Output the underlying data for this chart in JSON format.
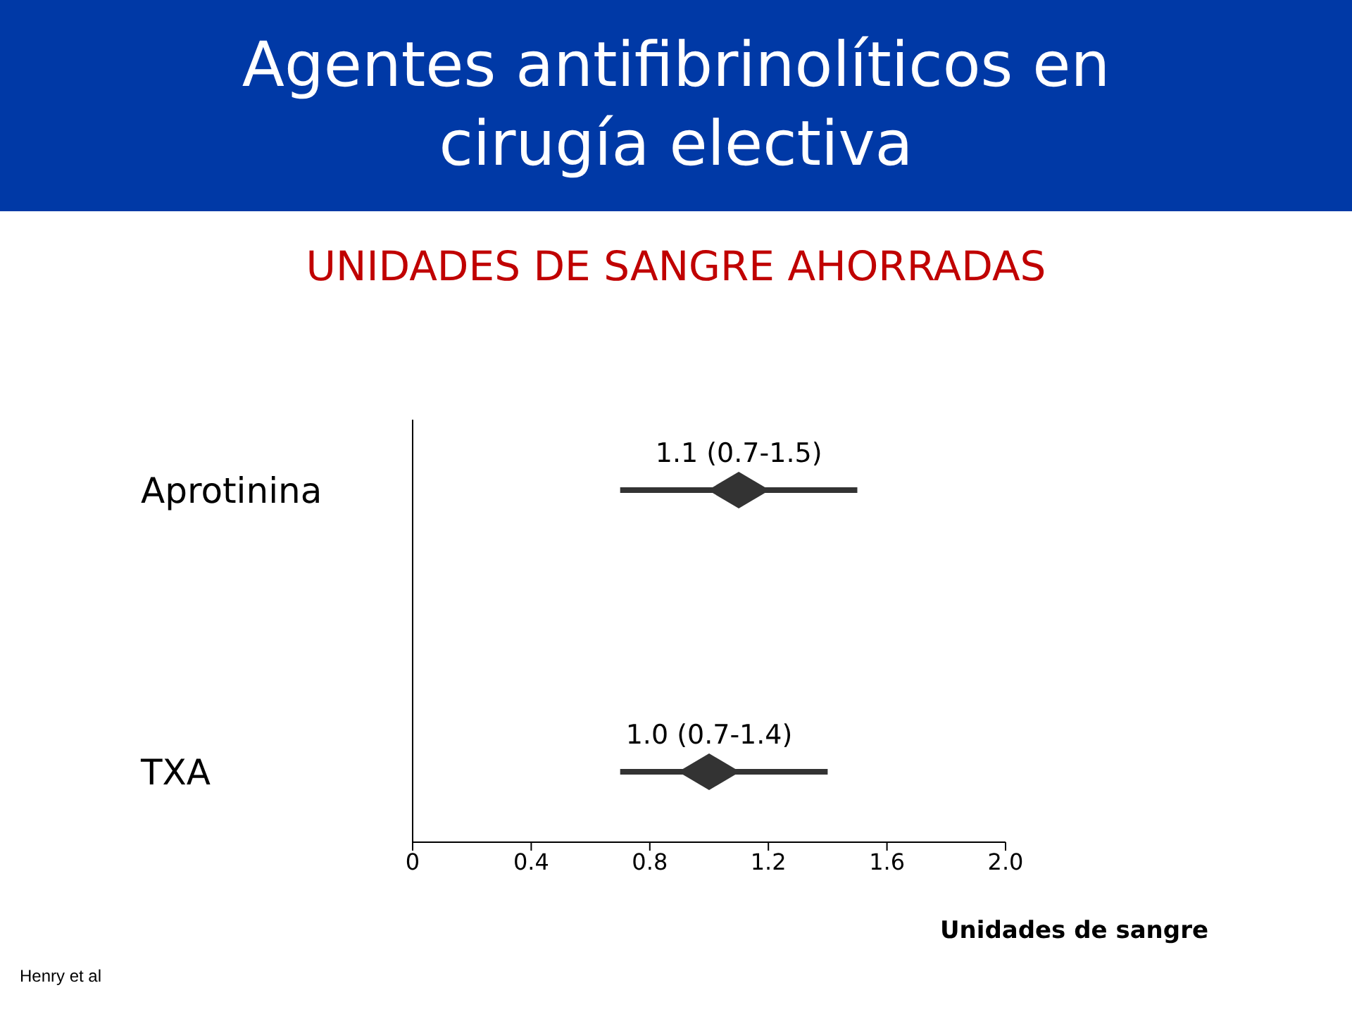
{
  "chart_data": {
    "type": "scatter",
    "orientation": "horizontal",
    "title": "Agentes antifibrinolíticos en cirugía electiva",
    "subtitle": "UNIDADES DE SANGRE AHORRADAS",
    "xlabel": "Unidades de sangre",
    "categories": [
      "Aprotinina",
      "TXA"
    ],
    "values": [
      1.1,
      1.0
    ],
    "errors": [
      [
        0.7,
        1.5
      ],
      [
        0.7,
        1.4
      ]
    ],
    "value_labels": [
      "1.1 (0.7-1.5)",
      "1.0 (0.7-1.4)"
    ],
    "color": "#333333",
    "marker": "diamond",
    "xlim": [
      0,
      2
    ],
    "xticks": [
      0,
      0.4,
      0.8,
      1.2,
      1.6,
      {
        "value": 2,
        "label": "2.0"
      }
    ],
    "annotations": [
      "Henry et al"
    ]
  }
}
